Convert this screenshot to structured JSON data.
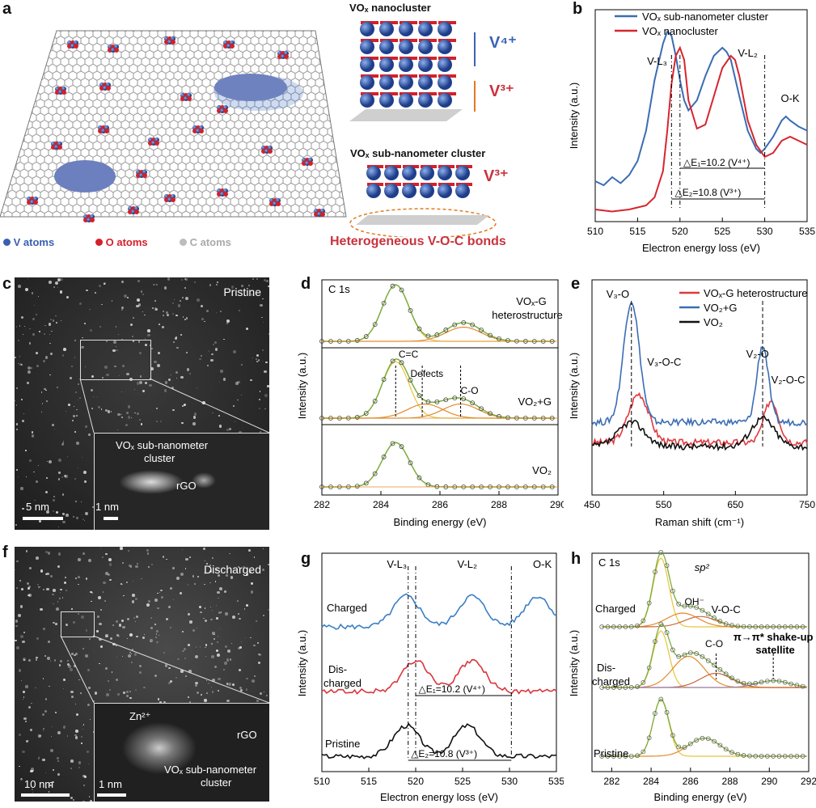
{
  "panels": {
    "a": {
      "letter": "a",
      "nanocluster_title": "VOₓ nanocluster",
      "subnano_title": "VOₓ sub-nanometer cluster",
      "v4": "V⁴⁺",
      "v3_top": "V³⁺",
      "v3_bottom": "V³⁺",
      "legend": {
        "v_atoms": "V atoms",
        "o_atoms": "O atoms",
        "c_atoms": "C atoms",
        "bonds": "Heterogeneous V-O-C bonds"
      },
      "colors": {
        "v": "#3a5fb0",
        "o": "#d4202a",
        "c": "#bdbdbd",
        "bonds": "#c8333d"
      }
    },
    "b": {
      "letter": "b",
      "legend": [
        "VOₓ sub-nanometer cluster",
        "VOₓ nanocluster"
      ],
      "annotations": {
        "vl3": "V-L₃",
        "vl2": "V-L₂",
        "ok": "O-K",
        "de1": "△E₁=10.2 (V⁴⁺)",
        "de2": "△E₂=10.8 (V³⁺)"
      }
    },
    "c": {
      "letter": "c",
      "state": "Pristine",
      "inset_label_1": "VOₓ sub-nanometer",
      "inset_label_2": "cluster",
      "rgo": "rGO",
      "scale_main": "5 nm",
      "scale_inset": "1 nm"
    },
    "d": {
      "letter": "d",
      "core_level": "C 1s",
      "top_label_1": "VOₓ-G",
      "top_label_2": "heterostructure",
      "mid_label": "VO₂+G",
      "bot_label": "VO₂",
      "cc": "C=C",
      "defects": "Defects",
      "co": "C-O"
    },
    "e": {
      "letter": "e",
      "legend": [
        "VOₓ-G heterostructure",
        "VO₂+G",
        "VO₂"
      ],
      "annotations": {
        "v3o": "V₃-O",
        "v3oc": "V₃-O-C",
        "v2o": "V₂-O",
        "v2oc": "V₂-O-C"
      }
    },
    "f": {
      "letter": "f",
      "state": "Discharged",
      "zn": "Zn²⁺",
      "rgo": "rGO",
      "cluster_1": "VOₓ sub-nanometer",
      "cluster_2": "cluster",
      "scale_main": "10 nm",
      "scale_inset": "1 nm"
    },
    "g": {
      "letter": "g",
      "annotations": {
        "vl3": "V-L₃",
        "vl2": "V-L₂",
        "ok": "O-K",
        "de1": "△E₁=10.2 (V⁴⁺)",
        "de2": "△E₂=10.8 (V³⁺)"
      },
      "traces": [
        "Charged",
        "Dis-",
        "charged",
        "Pristine"
      ]
    },
    "h": {
      "letter": "h",
      "core_level": "C 1s",
      "sp2": "sp²",
      "oh": "OH⁻",
      "voc": "V-O-C",
      "co": "C-O",
      "shake_1": "π→π* shake-up",
      "shake_2": "satellite",
      "traces": [
        "Charged",
        "Dis-",
        "charged",
        "Pristine"
      ]
    }
  },
  "chart_data": [
    {
      "panel": "b",
      "type": "line",
      "xlabel": "Electron energy loss (eV)",
      "ylabel": "Intensity (a.u.)",
      "xlim": [
        510,
        535
      ],
      "xticks": [
        510,
        515,
        520,
        525,
        530,
        535
      ],
      "series": [
        {
          "name": "VOₓ sub-nanometer cluster",
          "color": "#3b6db3",
          "x": [
            510,
            511,
            512,
            513,
            514,
            515,
            516,
            517,
            518,
            518.5,
            519,
            519.5,
            520,
            520.5,
            521,
            522,
            523,
            524,
            525,
            525.5,
            526,
            527,
            528,
            529,
            529.5,
            530,
            531,
            532,
            532.5,
            533,
            534,
            535
          ],
          "y": [
            0.2,
            0.18,
            0.22,
            0.19,
            0.23,
            0.3,
            0.45,
            0.7,
            0.88,
            0.94,
            0.92,
            0.82,
            0.7,
            0.6,
            0.55,
            0.6,
            0.72,
            0.82,
            0.86,
            0.84,
            0.8,
            0.62,
            0.45,
            0.36,
            0.34,
            0.36,
            0.42,
            0.5,
            0.52,
            0.5,
            0.47,
            0.45
          ]
        },
        {
          "name": "VOₓ nanocluster",
          "color": "#d6262e",
          "x": [
            510,
            512,
            514,
            515,
            516,
            517,
            518,
            518.5,
            519,
            519.5,
            520,
            520.5,
            521,
            522,
            523,
            524,
            525,
            526,
            526.5,
            527,
            528,
            529,
            530,
            531,
            532,
            533,
            534,
            535
          ],
          "y": [
            0.06,
            0.05,
            0.06,
            0.07,
            0.08,
            0.12,
            0.25,
            0.45,
            0.68,
            0.82,
            0.86,
            0.8,
            0.6,
            0.46,
            0.48,
            0.62,
            0.76,
            0.82,
            0.8,
            0.72,
            0.5,
            0.38,
            0.32,
            0.34,
            0.4,
            0.42,
            0.4,
            0.38
          ]
        }
      ],
      "markers": [
        519,
        520,
        530
      ]
    },
    {
      "panel": "d",
      "type": "line",
      "xlabel": "Binding energy (eV)",
      "ylabel": "Intensity (a.u.)",
      "xlim": [
        282,
        290
      ],
      "xticks": [
        282,
        284,
        286,
        288,
        290
      ],
      "series": [
        {
          "name": "VOₓ-G heterostructure",
          "peaks": [
            284.5,
            286.8
          ]
        },
        {
          "name": "VO₂+G",
          "peaks": [
            284.5,
            285.5,
            286.7
          ]
        },
        {
          "name": "VO₂",
          "peaks": [
            284.5
          ]
        }
      ],
      "markers": [
        284.5,
        285.4,
        286.7
      ]
    },
    {
      "panel": "e",
      "type": "line",
      "xlabel": "Raman shift (cm⁻¹)",
      "ylabel": "Intensity (a.u.)",
      "xlim": [
        450,
        750
      ],
      "xticks": [
        450,
        550,
        650,
        750
      ],
      "series": [
        {
          "name": "VOₓ-G heterostructure",
          "color": "#e0393f",
          "peaks": [
            515,
            700
          ]
        },
        {
          "name": "VO₂+G",
          "color": "#3b6db3",
          "peaks": [
            505,
            688
          ]
        },
        {
          "name": "VO₂",
          "color": "#111111",
          "peaks": [
            505,
            688
          ]
        }
      ],
      "markers": [
        505,
        688
      ]
    },
    {
      "panel": "g",
      "type": "line",
      "xlabel": "Electron energy loss (eV)",
      "ylabel": "Intensity (a.u.)",
      "xlim": [
        510,
        535
      ],
      "xticks": [
        510,
        515,
        520,
        525,
        530,
        535
      ],
      "series": [
        {
          "name": "Charged",
          "color": "#3b7fc4",
          "peaks": [
            519,
            526,
            533
          ]
        },
        {
          "name": "Discharged",
          "color": "#d9363e",
          "peaks": [
            520,
            526
          ]
        },
        {
          "name": "Pristine",
          "color": "#111111",
          "peaks": [
            519,
            525.5
          ]
        }
      ],
      "markers": [
        519.2,
        520,
        530.2
      ]
    },
    {
      "panel": "h",
      "type": "line",
      "xlabel": "Binding energy (eV)",
      "ylabel": "Intensity (a.u.)",
      "xlim": [
        281,
        292
      ],
      "xticks": [
        282,
        284,
        286,
        288,
        290,
        292
      ],
      "series": [
        {
          "name": "Charged",
          "peaks": [
            284.5,
            285.6,
            286.5
          ]
        },
        {
          "name": "Discharged",
          "peaks": [
            284.5,
            285.9,
            287.3,
            290.2
          ]
        },
        {
          "name": "Pristine",
          "peaks": [
            284.5,
            286.7
          ]
        }
      ],
      "markers": [
        287.3,
        290.2
      ]
    }
  ]
}
